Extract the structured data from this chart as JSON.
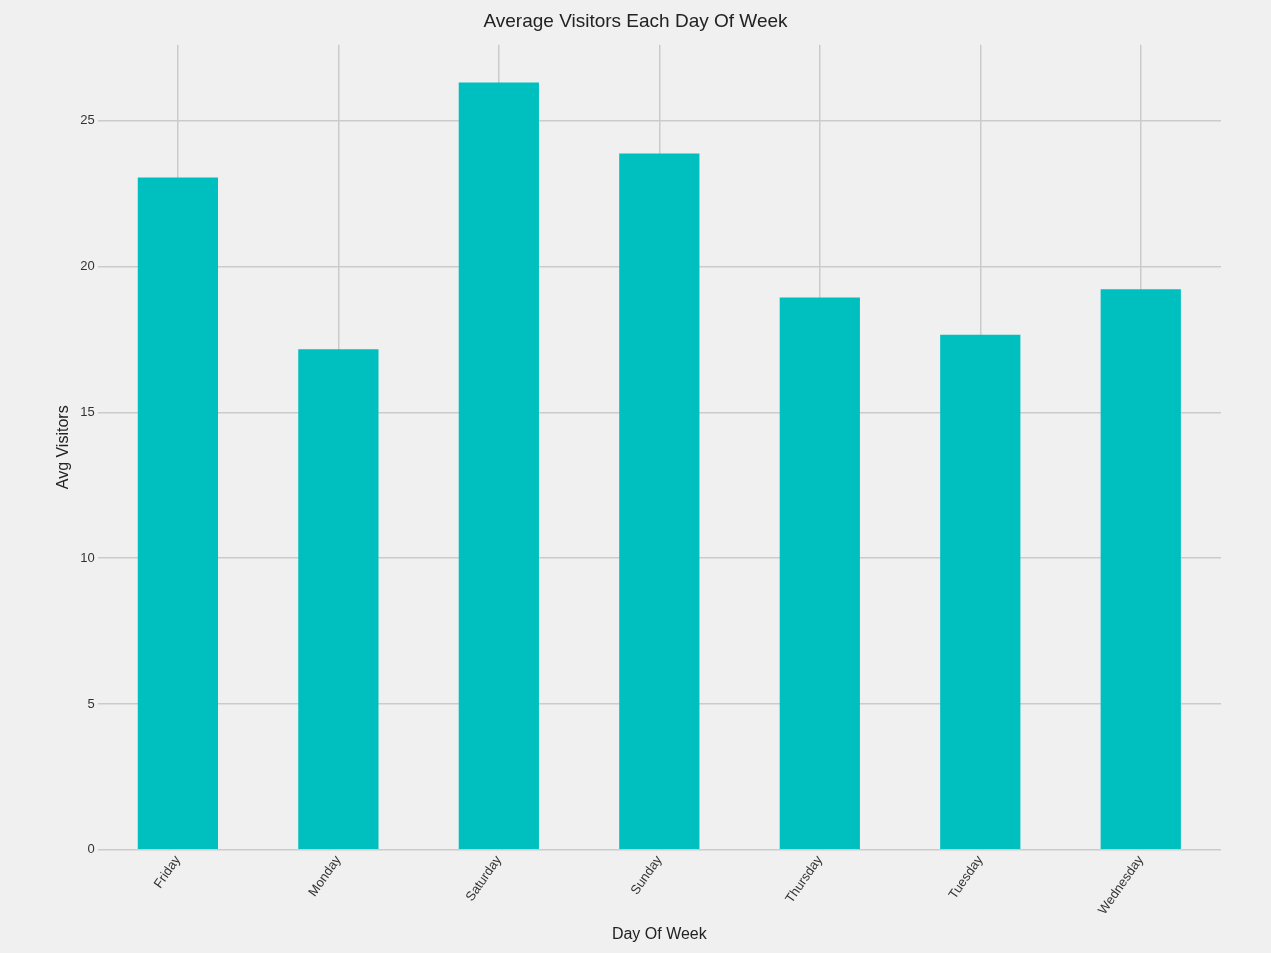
{
  "chart_data": {
    "type": "bar",
    "title": "Average Visitors Each Day Of Week",
    "xlabel": "Day Of Week",
    "ylabel": "Avg Visitors",
    "categories": [
      "Friday",
      "Monday",
      "Saturday",
      "Sunday",
      "Thursday",
      "Tuesday",
      "Wednesday"
    ],
    "values": [
      23.05,
      17.16,
      26.31,
      23.87,
      18.94,
      17.66,
      19.22
    ],
    "color": "#00bfbf",
    "ylim": [
      0,
      27.6
    ],
    "yticks": [
      0,
      5,
      10,
      15,
      20,
      25
    ],
    "grid": true,
    "legend": false
  }
}
